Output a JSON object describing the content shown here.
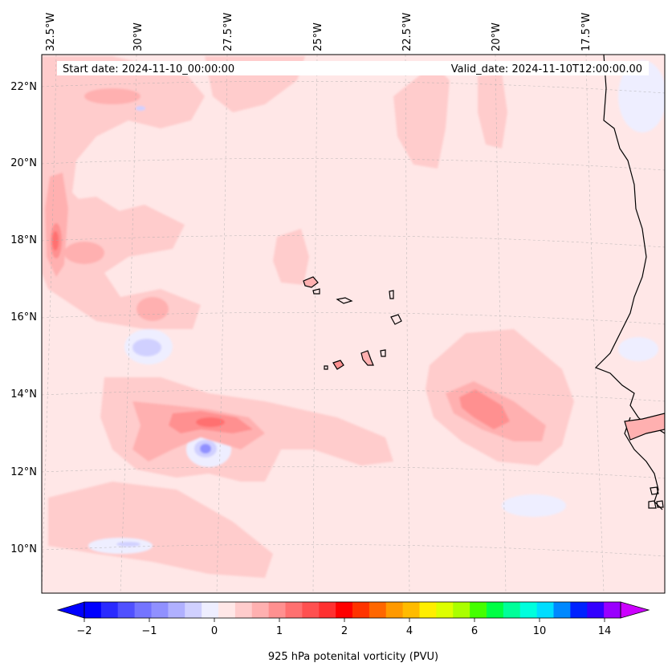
{
  "header": {
    "start_label": "Start date: 2024-11-10_00:00:00",
    "valid_label": "Valid_date: 2024-11-10T12:00:00.00"
  },
  "map": {
    "lon_labels": [
      "32.5°W",
      "30°W",
      "27.5°W",
      "25°W",
      "22.5°W",
      "20°W",
      "17.5°W"
    ],
    "lat_labels": [
      "22°N",
      "20°N",
      "18°N",
      "16°N",
      "14°N",
      "12°N",
      "10°N"
    ],
    "background_color": "#ffe7e7"
  },
  "colorbar": {
    "title": "925 hPa potenital vorticity (PVU)",
    "ticks": [
      "−2",
      "−1",
      "0",
      "1",
      "2",
      "4",
      "6",
      "10",
      "14"
    ],
    "colors": [
      "#0000ff",
      "#2a2aff",
      "#5050ff",
      "#7474ff",
      "#9090ff",
      "#b0b0ff",
      "#d0d0ff",
      "#eeeeff",
      "#ffe7e7",
      "#ffcccc",
      "#ffb0b0",
      "#ff9090",
      "#ff7070",
      "#ff5050",
      "#ff3030",
      "#ff0000",
      "#ff3300",
      "#ff6600",
      "#ff9900",
      "#ffbb00",
      "#ffee00",
      "#ddff00",
      "#aaff00",
      "#44ff00",
      "#00ff44",
      "#00ff99",
      "#00ffdd",
      "#00ddff",
      "#0088ff",
      "#0022ff",
      "#3300ff",
      "#9900ff"
    ],
    "under_color": "#0000ff",
    "over_color": "#cc00ff"
  }
}
